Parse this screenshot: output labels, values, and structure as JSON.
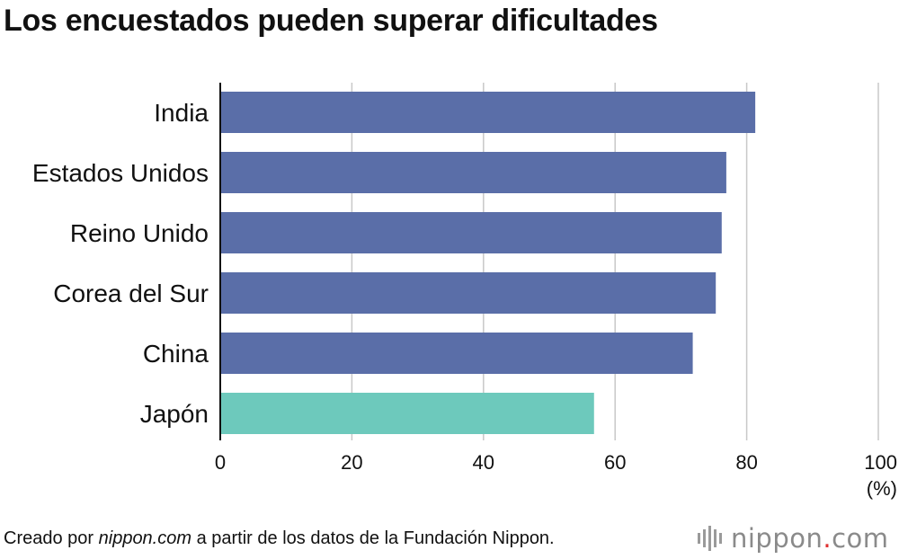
{
  "title": "Los encuestados pueden superar dificultades",
  "footer": {
    "prefix": "Creado por ",
    "site": "nippon.com",
    "suffix": " a partir de los datos de la Fundación Nippon."
  },
  "logo": {
    "name": "nippon",
    "dot": ".",
    "tld": "com"
  },
  "chart_data": {
    "type": "bar",
    "orientation": "horizontal",
    "categories": [
      "India",
      "Estados Unidos",
      "Reino Unido",
      "Corea del Sur",
      "China",
      "Japón"
    ],
    "values": [
      81.3,
      76.9,
      76.2,
      75.3,
      71.8,
      56.8
    ],
    "colors": [
      "#5a6ea8",
      "#5a6ea8",
      "#5a6ea8",
      "#5a6ea8",
      "#5a6ea8",
      "#6dc9bc"
    ],
    "xlim": [
      0,
      100
    ],
    "xticks": [
      0,
      20,
      40,
      60,
      80,
      100
    ],
    "xunit": "(%)",
    "grid": true,
    "title": "Los encuestados pueden superar dificultades"
  }
}
